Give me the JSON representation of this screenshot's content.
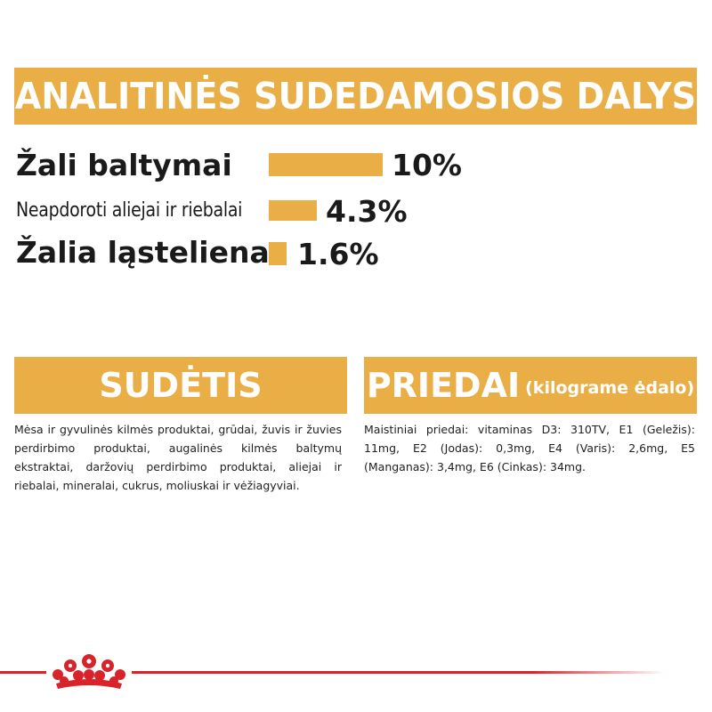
{
  "banner": {
    "title": "ANALITINĖS SUDEDAMOSIOS DALYS"
  },
  "nutrients": [
    {
      "label": "Žali baltymai",
      "value": "10%",
      "level_percent": 10
    },
    {
      "label": "Neapdoroti aliejai ir riebalai",
      "value": "4.3%",
      "level_percent": 4.3
    },
    {
      "label": "Žalia ląsteliena",
      "value": "1.6%",
      "level_percent": 1.6
    }
  ],
  "composition": {
    "title": "SUDĖTIS",
    "text": "Mėsa ir gyvulinės kilmės produktai, grūdai, žuvis ir žuvies perdirbimo produktai, augalinės kilmės baltymų ekstraktai, daržovių perdirbimo produktai, aliejai ir riebalai, mineralai, cukrus, moliuskai ir vėžiagyviai."
  },
  "additives": {
    "title": "PRIEDAI",
    "subtitle": "(kilograme ėdalo)",
    "text": "Maistiniai priedai: vitaminas D3: 310TV, E1 (Geležis): 11mg, E2 (Jodas): 0,3mg, E4 (Varis): 2,6mg, E5 (Manganas): 3,4mg, E6 (Cinkas): 34mg."
  },
  "colors": {
    "accent": "#e9af46",
    "brand_red": "#d8232a",
    "text": "#1a1a1a"
  },
  "footer": {
    "logo_icon": "crown-icon"
  }
}
